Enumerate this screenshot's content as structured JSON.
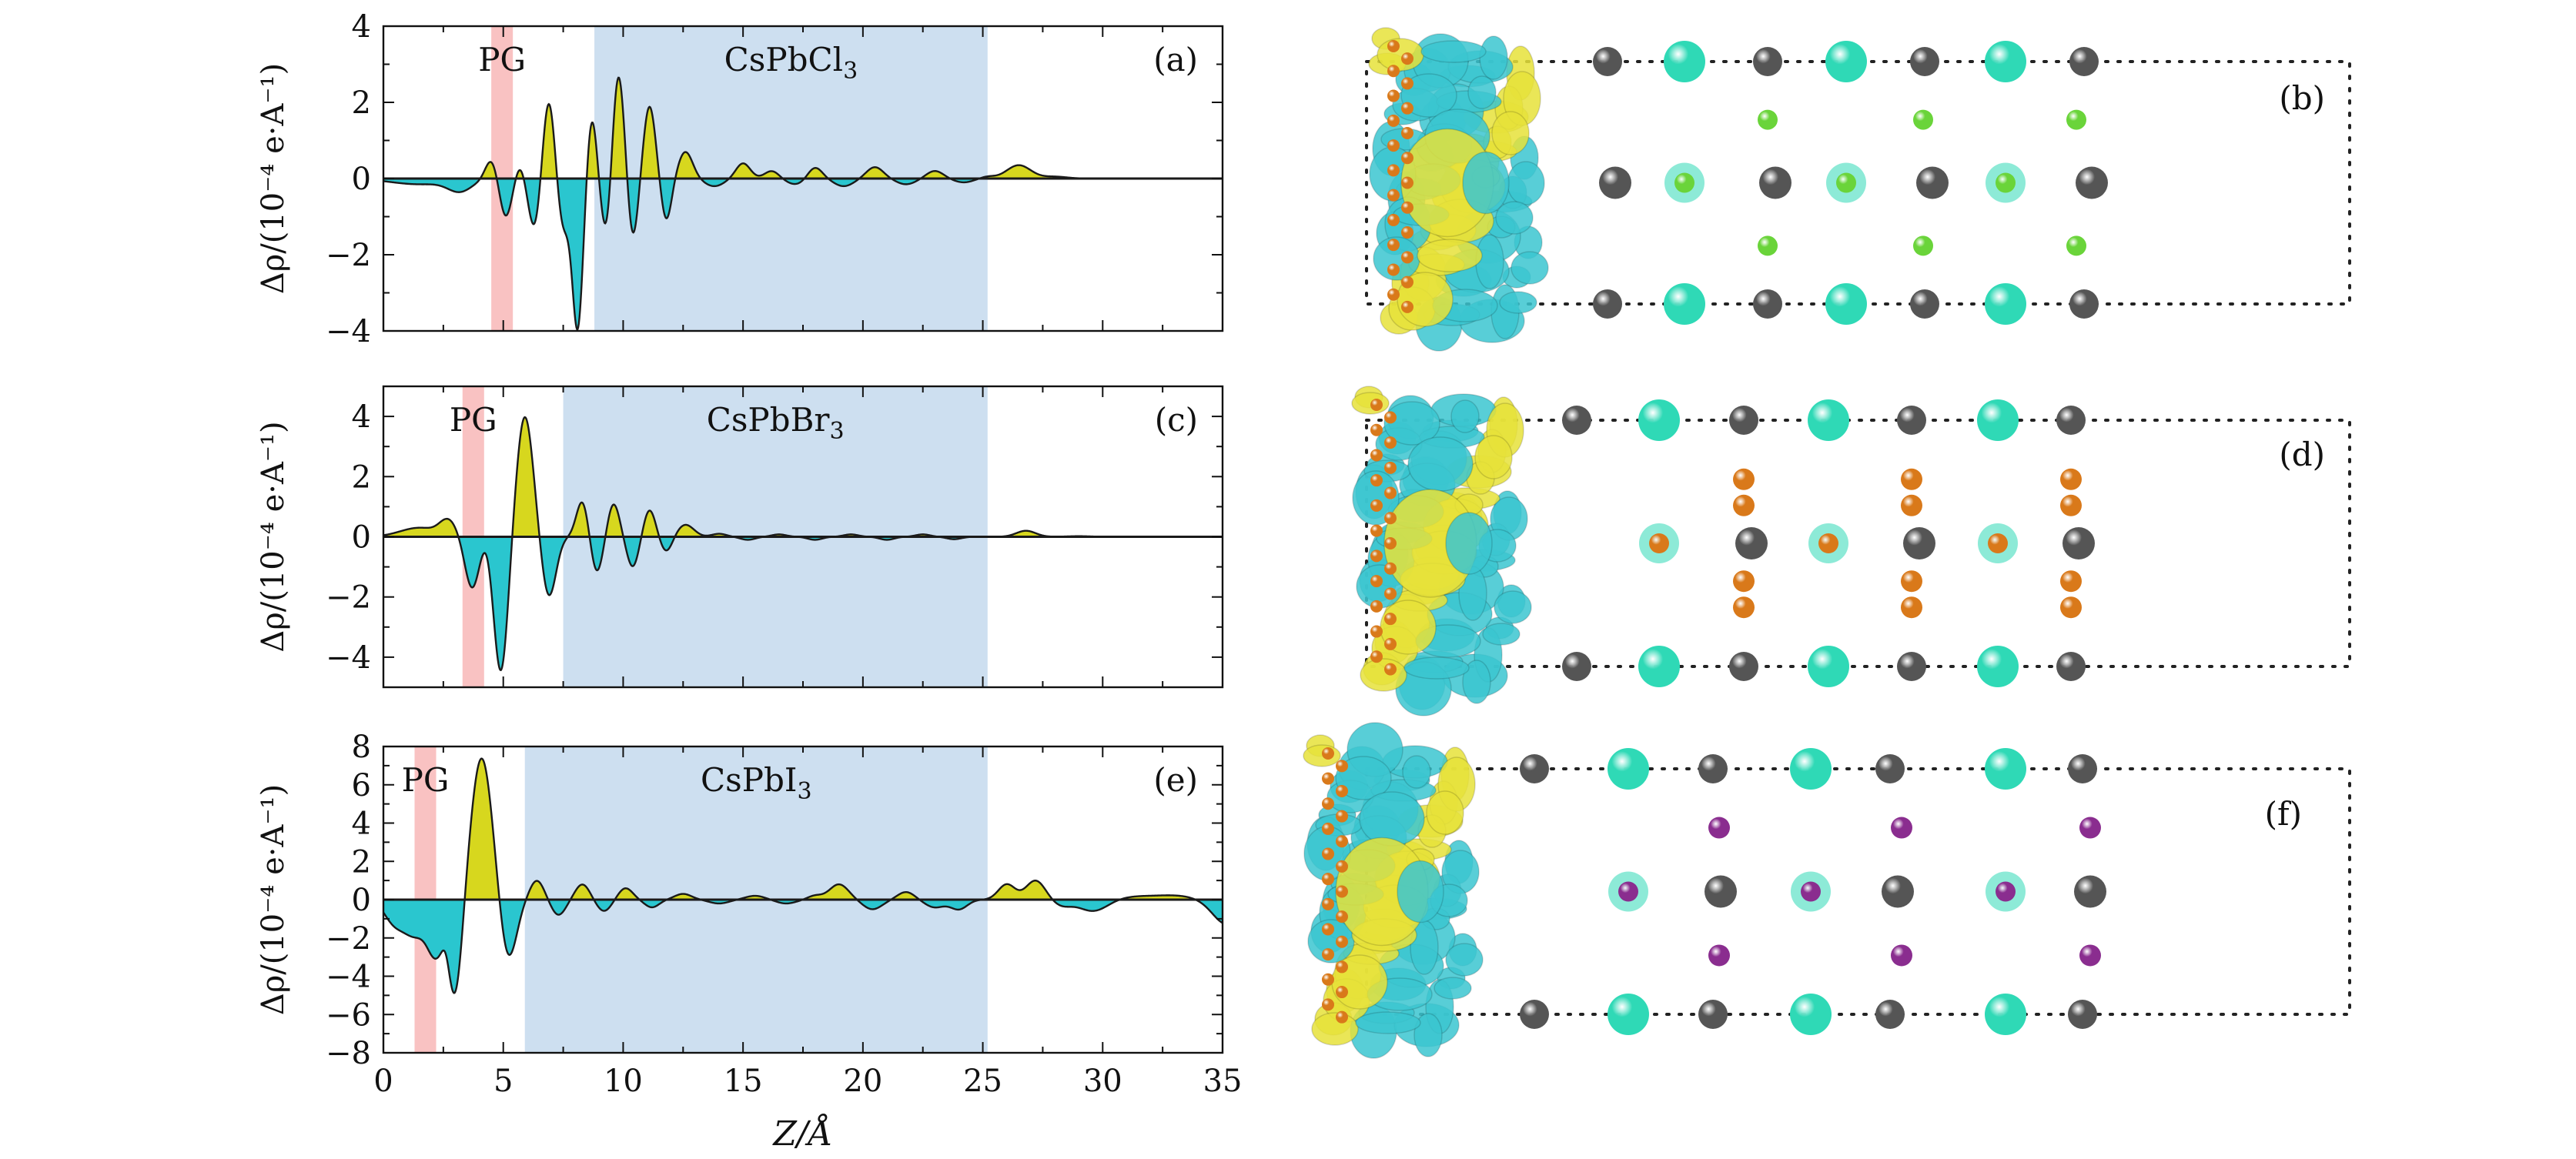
{
  "figure": {
    "xlabel": "Z/Å",
    "ylabel": "Δρ/(10⁻⁴ e·A⁻¹)",
    "colors": {
      "positive_fill": "#d7d71e",
      "negative_fill": "#2ac6cf",
      "pg_band": "#f9c2c2",
      "material_band": "#cddff0",
      "curve": "#1a1a1a",
      "cs_atom": "#2fd9b6",
      "pb_atom": "#555555",
      "cl_atom": "#6ad43a",
      "br_atom": "#d9791a",
      "i_atom": "#8a2d8f",
      "isosurface_yellow": "#e6e23a",
      "isosurface_cyan": "#3bc6d0"
    },
    "structure_labels": [
      "(b)",
      "(d)",
      "(f)"
    ]
  },
  "chart_data": [
    {
      "type": "area",
      "panel": "(a)",
      "material": "CsPbCl",
      "material_sub": "3",
      "pg_label": "PG",
      "pg_range": [
        4.5,
        5.4
      ],
      "material_range": [
        8.8,
        25.2
      ],
      "xlim": [
        0,
        35
      ],
      "ylim": [
        -4,
        4
      ],
      "yticks": [
        -4,
        -2,
        0,
        2,
        4
      ],
      "xticks": [
        0,
        5,
        10,
        15,
        20,
        25,
        30,
        35
      ],
      "peaks": [
        [
          1.5,
          -0.15,
          1.2
        ],
        [
          3.2,
          -0.3,
          0.5
        ],
        [
          4.5,
          0.5,
          0.25
        ],
        [
          5.1,
          -1.0,
          0.25
        ],
        [
          5.7,
          0.35,
          0.2
        ],
        [
          6.3,
          -1.3,
          0.25
        ],
        [
          6.9,
          2.1,
          0.25
        ],
        [
          7.5,
          -1.3,
          0.25
        ],
        [
          8.1,
          -3.9,
          0.22
        ],
        [
          8.7,
          1.6,
          0.2
        ],
        [
          9.3,
          -1.5,
          0.22
        ],
        [
          9.8,
          2.8,
          0.25
        ],
        [
          10.4,
          -1.6,
          0.22
        ],
        [
          11.1,
          1.9,
          0.25
        ],
        [
          11.8,
          -1.1,
          0.22
        ],
        [
          12.6,
          0.7,
          0.3
        ],
        [
          13.8,
          -0.2,
          0.4
        ],
        [
          15.0,
          0.4,
          0.3
        ],
        [
          16.2,
          0.2,
          0.3
        ],
        [
          17.2,
          -0.15,
          0.4
        ],
        [
          18.0,
          0.3,
          0.3
        ],
        [
          19.2,
          -0.2,
          0.4
        ],
        [
          20.5,
          0.3,
          0.35
        ],
        [
          21.8,
          -0.15,
          0.4
        ],
        [
          23.0,
          0.2,
          0.35
        ],
        [
          24.2,
          -0.1,
          0.4
        ],
        [
          25.2,
          0.05,
          0.3
        ],
        [
          26.5,
          0.35,
          0.5
        ],
        [
          28.0,
          0.05,
          0.5
        ]
      ]
    },
    {
      "type": "area",
      "panel": "(c)",
      "material": "CsPbBr",
      "material_sub": "3",
      "pg_label": "PG",
      "pg_range": [
        3.3,
        4.2
      ],
      "material_range": [
        7.5,
        25.2
      ],
      "xlim": [
        0,
        35
      ],
      "ylim": [
        -5,
        5
      ],
      "yticks": [
        -4,
        -2,
        0,
        2,
        4
      ],
      "xticks": [
        0,
        5,
        10,
        15,
        20,
        25,
        30,
        35
      ],
      "peaks": [
        [
          1.5,
          0.3,
          0.8
        ],
        [
          2.7,
          0.5,
          0.35
        ],
        [
          3.7,
          -1.7,
          0.3
        ],
        [
          4.3,
          0.2,
          0.2
        ],
        [
          4.9,
          -4.5,
          0.3
        ],
        [
          5.9,
          4.0,
          0.35
        ],
        [
          6.9,
          -2.0,
          0.3
        ],
        [
          8.3,
          1.2,
          0.25
        ],
        [
          8.9,
          -1.2,
          0.25
        ],
        [
          9.6,
          1.1,
          0.25
        ],
        [
          10.4,
          -1.0,
          0.25
        ],
        [
          11.1,
          0.9,
          0.25
        ],
        [
          11.8,
          -0.5,
          0.25
        ],
        [
          12.6,
          0.4,
          0.35
        ],
        [
          14.0,
          0.1,
          0.3
        ],
        [
          15.2,
          -0.1,
          0.3
        ],
        [
          16.5,
          0.08,
          0.3
        ],
        [
          18.0,
          -0.1,
          0.3
        ],
        [
          19.5,
          0.08,
          0.3
        ],
        [
          21.0,
          -0.1,
          0.3
        ],
        [
          22.5,
          0.08,
          0.3
        ],
        [
          23.8,
          -0.08,
          0.3
        ],
        [
          26.8,
          0.2,
          0.4
        ],
        [
          29.0,
          0.02,
          0.5
        ]
      ]
    },
    {
      "type": "area",
      "panel": "(e)",
      "material": "CsPbI",
      "material_sub": "3",
      "pg_label": "PG",
      "pg_range": [
        1.3,
        2.2
      ],
      "material_range": [
        5.9,
        25.2
      ],
      "xlim": [
        0,
        35
      ],
      "ylim": [
        -8,
        8
      ],
      "yticks": [
        -8,
        -6,
        -4,
        -2,
        0,
        2,
        4,
        6,
        8
      ],
      "xticks": [
        0,
        5,
        10,
        15,
        20,
        25,
        30,
        35
      ],
      "peaks": [
        [
          0.4,
          -1.0,
          0.4
        ],
        [
          1.3,
          -1.8,
          0.5
        ],
        [
          2.2,
          -2.6,
          0.35
        ],
        [
          2.6,
          0.6,
          0.15
        ],
        [
          3.0,
          -5.0,
          0.3
        ],
        [
          4.1,
          7.4,
          0.45
        ],
        [
          5.2,
          -3.2,
          0.35
        ],
        [
          6.4,
          1.0,
          0.3
        ],
        [
          7.3,
          -0.8,
          0.3
        ],
        [
          8.3,
          0.8,
          0.3
        ],
        [
          9.2,
          -0.6,
          0.3
        ],
        [
          10.1,
          0.6,
          0.3
        ],
        [
          11.2,
          -0.4,
          0.3
        ],
        [
          12.5,
          0.3,
          0.35
        ],
        [
          14.0,
          -0.2,
          0.4
        ],
        [
          15.5,
          0.2,
          0.4
        ],
        [
          16.8,
          -0.2,
          0.4
        ],
        [
          18.0,
          0.2,
          0.3
        ],
        [
          19.0,
          0.8,
          0.4
        ],
        [
          20.4,
          -0.5,
          0.4
        ],
        [
          21.8,
          0.4,
          0.35
        ],
        [
          23.0,
          -0.4,
          0.4
        ],
        [
          24.0,
          -0.5,
          0.35
        ],
        [
          26.0,
          0.8,
          0.35
        ],
        [
          27.2,
          1.0,
          0.4
        ],
        [
          28.3,
          -0.3,
          0.4
        ],
        [
          29.6,
          -0.6,
          0.6
        ],
        [
          31.4,
          0.15,
          0.8
        ],
        [
          33.0,
          0.2,
          0.8
        ],
        [
          35.2,
          -1.3,
          0.6
        ]
      ]
    }
  ]
}
